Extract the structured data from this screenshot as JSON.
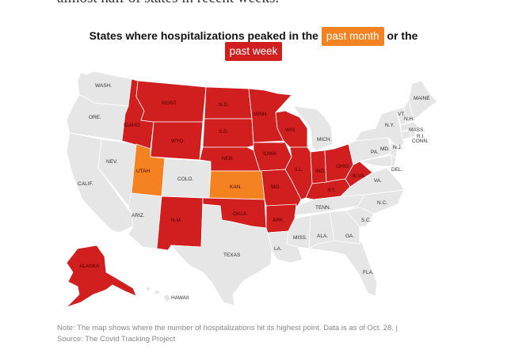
{
  "intro_text": "almost half of states in recent weeks.",
  "headline": {
    "before": "States where hospitalizations peaked in the",
    "month_label": "past month",
    "between": "or the",
    "week_label": "past week"
  },
  "colors": {
    "past_week": "#d11f1f",
    "past_month": "#f58220",
    "other": "#e6e6e6",
    "border": "#ffffff"
  },
  "states": {
    "WASH.": "other",
    "ORE.": "other",
    "CALIF.": "other",
    "NEV.": "other",
    "IDAHO": "past_week",
    "MONT": "past_week",
    "WYO.": "past_week",
    "UTAH": "past_month",
    "COLO.": "other",
    "ARIZ.": "other",
    "N.M.": "past_week",
    "N.D.": "past_week",
    "S.D.": "past_week",
    "NEB.": "past_week",
    "KAN.": "past_month",
    "OKLA.": "past_week",
    "TEXAS": "other",
    "MINN.": "past_week",
    "IOWA": "past_week",
    "MO.": "past_week",
    "ARK.": "past_week",
    "LA.": "other",
    "WIS.": "past_week",
    "ILL.": "past_week",
    "MICH.": "other",
    "IND.": "past_week",
    "OHIO": "past_week",
    "KY.": "past_week",
    "TENN.": "other",
    "MISS.": "other",
    "ALA.": "other",
    "GA.": "other",
    "FLA.": "other",
    "S.C.": "other",
    "N.C.": "other",
    "VA.": "other",
    "W.VA.": "past_week",
    "PA.": "other",
    "N.Y.": "other",
    "MAINE": "other",
    "ALASKA": "past_week",
    "HAWAII": "other",
    "MD.": "other",
    "DEL.": "other",
    "N.J.": "other",
    "CONN.": "other",
    "R.I.": "other",
    "MASS.": "other",
    "N.H.": "other",
    "VT.": "other"
  },
  "note": "Note: The map shows where the number of hospitalizations hit its highest point. Data is as of Oct. 28. |",
  "source": "Source: The Covid Tracking Project"
}
